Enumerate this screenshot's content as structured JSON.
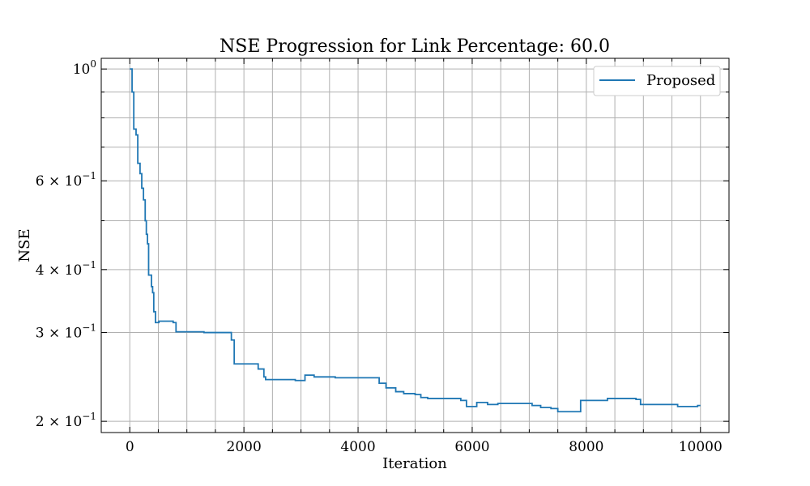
{
  "chart_data": {
    "type": "line",
    "title": "NSE Progression for Link Percentage: 60.0",
    "xlabel": "Iteration",
    "ylabel": "NSE",
    "xlim": [
      -500,
      10500
    ],
    "ylim": [
      0.19,
      1.05
    ],
    "yscale": "log",
    "x_ticks": [
      0,
      2000,
      4000,
      6000,
      8000,
      10000
    ],
    "y_major_ticks": [
      {
        "value": 1.0,
        "label_base": "10",
        "label_exp": "0",
        "label_mant": ""
      },
      {
        "value": 0.6,
        "label_base": "10",
        "label_exp": "−1",
        "label_mant": "6 × "
      },
      {
        "value": 0.4,
        "label_base": "10",
        "label_exp": "−1",
        "label_mant": "4 × "
      },
      {
        "value": 0.3,
        "label_base": "10",
        "label_exp": "−1",
        "label_mant": "3 × "
      },
      {
        "value": 0.2,
        "label_base": "10",
        "label_exp": "−1",
        "label_mant": "2 × "
      }
    ],
    "y_minor_ticks": [
      0.9,
      0.8,
      0.7,
      0.5
    ],
    "grid": true,
    "legend": {
      "placement": "top-right"
    },
    "series": [
      {
        "name": "Proposed",
        "color": "#1f77b4",
        "step": true,
        "points": [
          [
            0,
            1.0
          ],
          [
            40,
            0.9
          ],
          [
            70,
            0.76
          ],
          [
            110,
            0.74
          ],
          [
            140,
            0.65
          ],
          [
            180,
            0.62
          ],
          [
            210,
            0.58
          ],
          [
            240,
            0.55
          ],
          [
            270,
            0.5
          ],
          [
            290,
            0.47
          ],
          [
            310,
            0.45
          ],
          [
            330,
            0.39
          ],
          [
            380,
            0.37
          ],
          [
            400,
            0.36
          ],
          [
            420,
            0.33
          ],
          [
            450,
            0.314
          ],
          [
            510,
            0.316
          ],
          [
            760,
            0.314
          ],
          [
            810,
            0.301
          ],
          [
            1300,
            0.3
          ],
          [
            1780,
            0.29
          ],
          [
            1830,
            0.26
          ],
          [
            2250,
            0.254
          ],
          [
            2350,
            0.245
          ],
          [
            2380,
            0.242
          ],
          [
            2900,
            0.241
          ],
          [
            3070,
            0.247
          ],
          [
            3230,
            0.245
          ],
          [
            3600,
            0.244
          ],
          [
            4370,
            0.238
          ],
          [
            4490,
            0.233
          ],
          [
            4660,
            0.229
          ],
          [
            4800,
            0.227
          ],
          [
            5000,
            0.226
          ],
          [
            5100,
            0.223
          ],
          [
            5220,
            0.222
          ],
          [
            5800,
            0.22
          ],
          [
            5900,
            0.214
          ],
          [
            6080,
            0.218
          ],
          [
            6270,
            0.216
          ],
          [
            6450,
            0.217
          ],
          [
            7050,
            0.215
          ],
          [
            7200,
            0.213
          ],
          [
            7380,
            0.212
          ],
          [
            7500,
            0.209
          ],
          [
            7900,
            0.22
          ],
          [
            8370,
            0.222
          ],
          [
            8870,
            0.221
          ],
          [
            8950,
            0.216
          ],
          [
            9600,
            0.214
          ],
          [
            9950,
            0.215
          ],
          [
            10000,
            0.215
          ]
        ]
      }
    ]
  }
}
